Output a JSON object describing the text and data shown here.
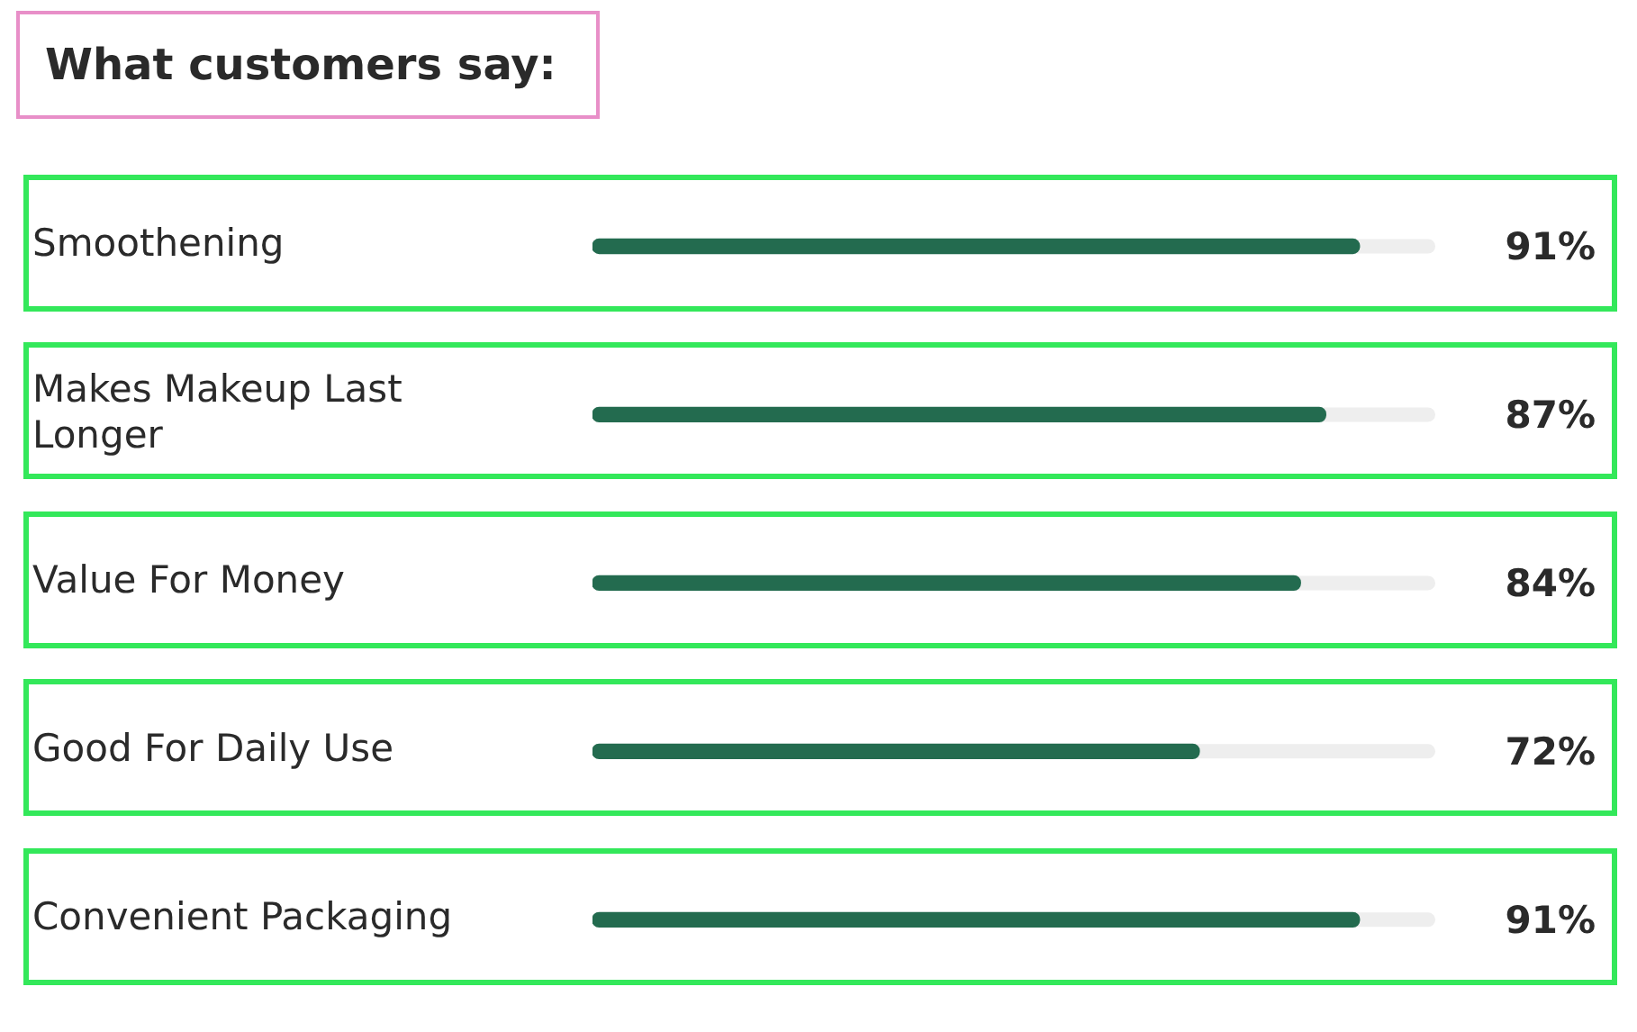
{
  "chart_data": {
    "type": "bar",
    "orientation": "horizontal",
    "title": "What customers say:",
    "categories": [
      "Smoothening",
      "Makes Makeup Last Longer",
      "Value For Money",
      "Good For Daily Use",
      "Convenient Packaging"
    ],
    "values": [
      91,
      87,
      84,
      72,
      91
    ],
    "color": "#236b4f",
    "xlim": [
      0,
      100
    ],
    "tick_labels": "y",
    "value_labels": [
      "91%",
      "87%",
      "84%",
      "72%",
      "91%"
    ]
  }
}
